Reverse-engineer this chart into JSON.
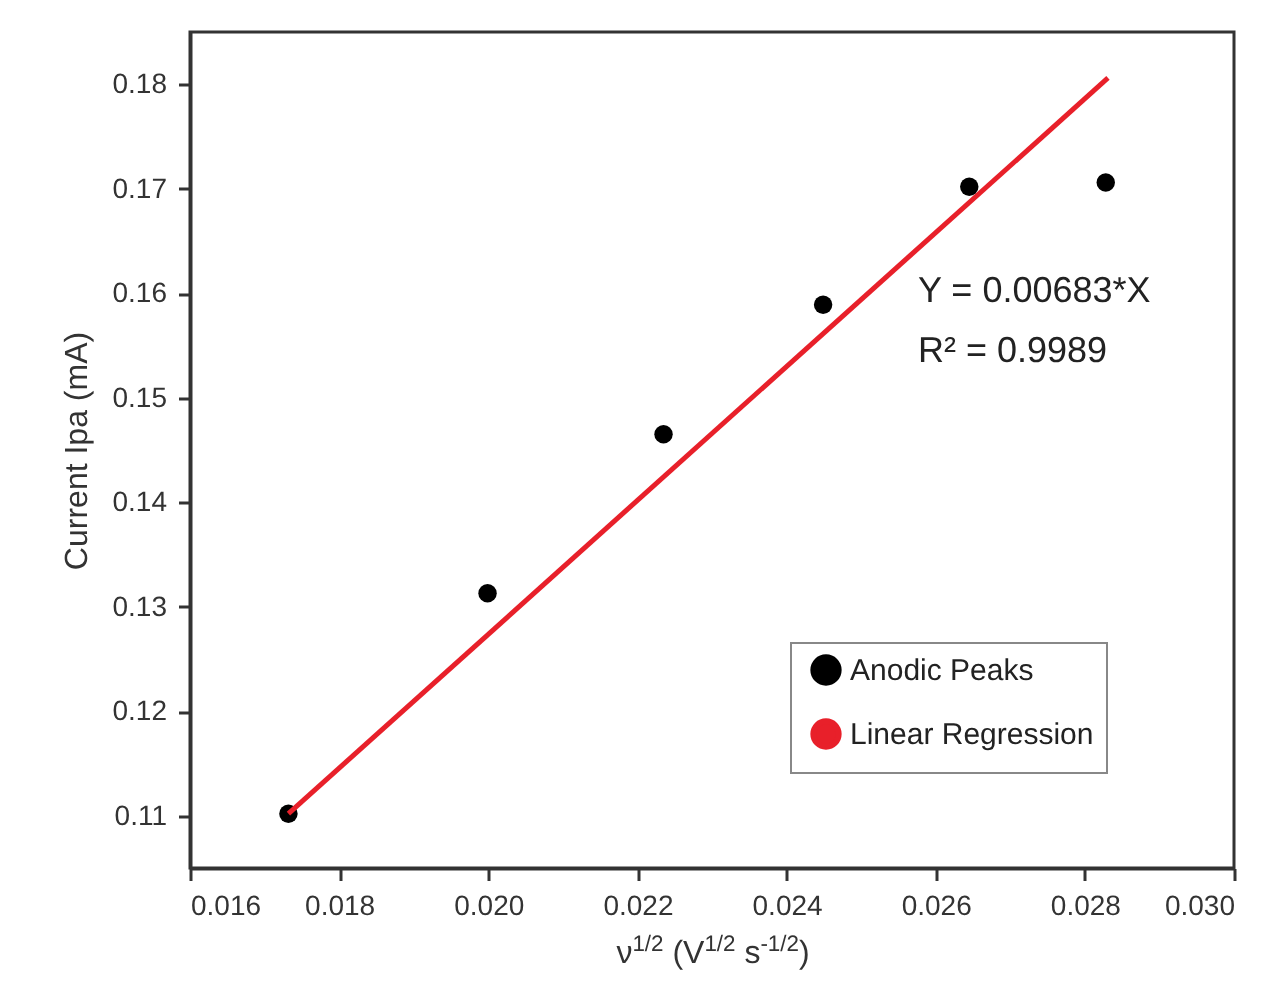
{
  "chart_data": {
    "type": "scatter",
    "xlabel": "ν$^{1/2}$ (V$^{1/2}$ s$^{-1/2}$)",
    "ylabel": "Current Ipa (mA)",
    "series": [
      {
        "name": "Anodic Peaks",
        "type": "scatter",
        "color": "#000000",
        "marker": "circle",
        "x": [
          0.01732,
          0.01999,
          0.02235,
          0.02449,
          0.02645,
          0.02828
        ],
        "values": [
          0.1102,
          0.1313,
          0.1465,
          0.1589,
          0.1702,
          0.1706
        ]
      },
      {
        "name": "Linear Regression",
        "type": "line",
        "color": "#e8202a",
        "x": [
          0.01732,
          0.02831
        ],
        "values": [
          0.1102,
          0.1806
        ]
      }
    ],
    "xlim": [
      0.016,
      0.03
    ],
    "xticks": [
      0.016,
      0.018,
      {
        "value": 0.02,
        "label": "0.020"
      },
      0.022,
      0.024,
      0.026,
      0.028,
      {
        "value": 0.03,
        "label": "0.030"
      }
    ],
    "ylim": [
      0.105,
      0.185
    ],
    "yticks": [
      0.11,
      0.12,
      0.13,
      0.14,
      0.15,
      0.16,
      0.17,
      0.18
    ],
    "annotations": [
      "Y = 0.00683*X",
      "R² = 0.9989"
    ],
    "legend": "bottom right",
    "grid": false
  }
}
